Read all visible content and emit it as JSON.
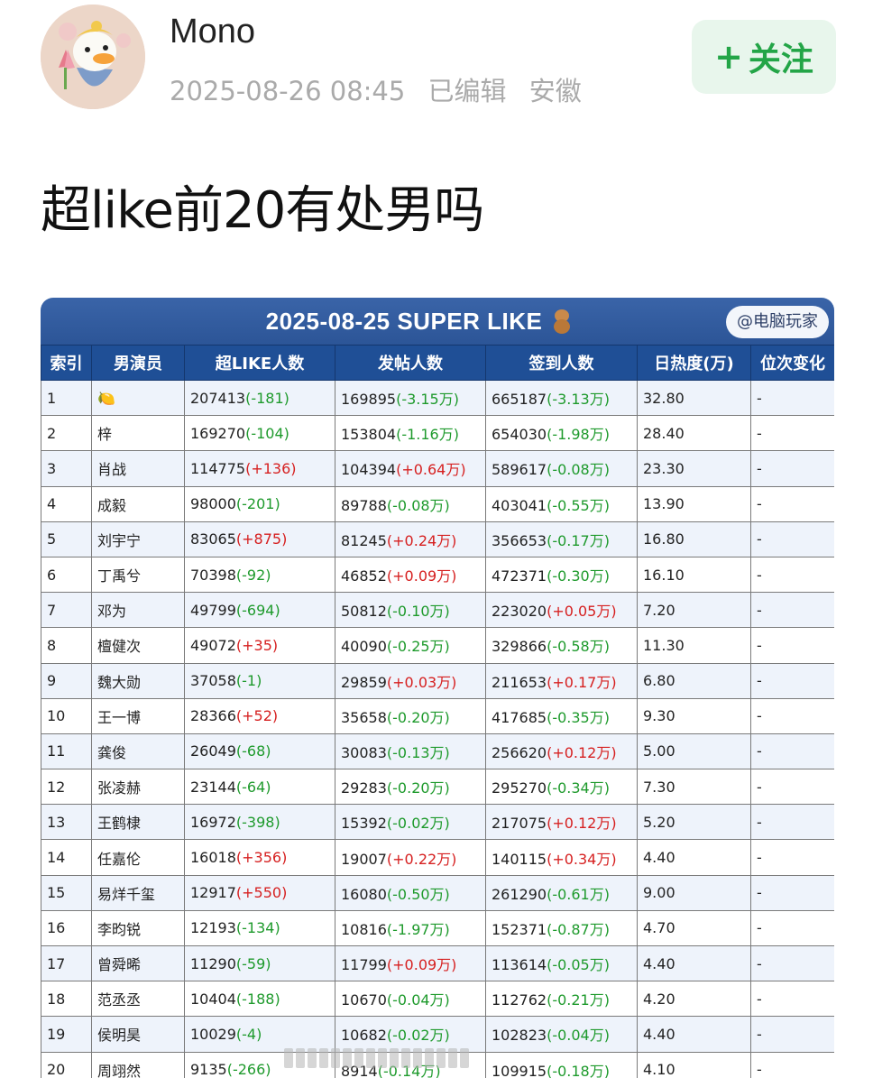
{
  "post": {
    "username": "Mono",
    "date": "2025-08-26 08:45",
    "edited": "已编辑",
    "location": "安徽",
    "follow_plus": "+",
    "follow_label": "关注",
    "title": "超like前20有处男吗"
  },
  "table": {
    "title": "2025-08-25 SUPER LIKE",
    "source_tag": "@电脑玩家",
    "headers": [
      "索引",
      "男演员",
      "超LIKE人数",
      "发帖人数",
      "签到人数",
      "日热度(万)",
      "位次变化"
    ],
    "rows": [
      {
        "idx": "1",
        "name": "🍋",
        "like": "207413",
        "like_d": "(-181)",
        "post": "169895",
        "post_d": "(-3.15万)",
        "sign": "665187",
        "sign_d": "(-3.13万)",
        "heat": "32.80",
        "rank": "-"
      },
      {
        "idx": "2",
        "name": "梓",
        "like": "169270",
        "like_d": "(-104)",
        "post": "153804",
        "post_d": "(-1.16万)",
        "sign": "654030",
        "sign_d": "(-1.98万)",
        "heat": "28.40",
        "rank": "-"
      },
      {
        "idx": "3",
        "name": "肖战",
        "like": "114775",
        "like_d": "(+136)",
        "post": "104394",
        "post_d": "(+0.64万)",
        "sign": "589617",
        "sign_d": "(-0.08万)",
        "heat": "23.30",
        "rank": "-"
      },
      {
        "idx": "4",
        "name": "成毅",
        "like": "98000",
        "like_d": "(-201)",
        "post": "89788",
        "post_d": "(-0.08万)",
        "sign": "403041",
        "sign_d": "(-0.55万)",
        "heat": "13.90",
        "rank": "-"
      },
      {
        "idx": "5",
        "name": "刘宇宁",
        "like": "83065",
        "like_d": "(+875)",
        "post": "81245",
        "post_d": "(+0.24万)",
        "sign": "356653",
        "sign_d": "(-0.17万)",
        "heat": "16.80",
        "rank": "-"
      },
      {
        "idx": "6",
        "name": "丁禹兮",
        "like": "70398",
        "like_d": "(-92)",
        "post": "46852",
        "post_d": "(+0.09万)",
        "sign": "472371",
        "sign_d": "(-0.30万)",
        "heat": "16.10",
        "rank": "-"
      },
      {
        "idx": "7",
        "name": "邓为",
        "like": "49799",
        "like_d": "(-694)",
        "post": "50812",
        "post_d": "(-0.10万)",
        "sign": "223020",
        "sign_d": "(+0.05万)",
        "heat": "7.20",
        "rank": "-"
      },
      {
        "idx": "8",
        "name": "檀健次",
        "like": "49072",
        "like_d": "(+35)",
        "post": "40090",
        "post_d": "(-0.25万)",
        "sign": "329866",
        "sign_d": "(-0.58万)",
        "heat": "11.30",
        "rank": "-"
      },
      {
        "idx": "9",
        "name": "魏大勋",
        "like": "37058",
        "like_d": "(-1)",
        "post": "29859",
        "post_d": "(+0.03万)",
        "sign": "211653",
        "sign_d": "(+0.17万)",
        "heat": "6.80",
        "rank": "-"
      },
      {
        "idx": "10",
        "name": "王一博",
        "like": "28366",
        "like_d": "(+52)",
        "post": "35658",
        "post_d": "(-0.20万)",
        "sign": "417685",
        "sign_d": "(-0.35万)",
        "heat": "9.30",
        "rank": "-"
      },
      {
        "idx": "11",
        "name": "龚俊",
        "like": "26049",
        "like_d": "(-68)",
        "post": "30083",
        "post_d": "(-0.13万)",
        "sign": "256620",
        "sign_d": "(+0.12万)",
        "heat": "5.00",
        "rank": "-"
      },
      {
        "idx": "12",
        "name": "张凌赫",
        "like": "23144",
        "like_d": "(-64)",
        "post": "29283",
        "post_d": "(-0.20万)",
        "sign": "295270",
        "sign_d": "(-0.34万)",
        "heat": "7.30",
        "rank": "-"
      },
      {
        "idx": "13",
        "name": "王鹤棣",
        "like": "16972",
        "like_d": "(-398)",
        "post": "15392",
        "post_d": "(-0.02万)",
        "sign": "217075",
        "sign_d": "(+0.12万)",
        "heat": "5.20",
        "rank": "-"
      },
      {
        "idx": "14",
        "name": "任嘉伦",
        "like": "16018",
        "like_d": "(+356)",
        "post": "19007",
        "post_d": "(+0.22万)",
        "sign": "140115",
        "sign_d": "(+0.34万)",
        "heat": "4.40",
        "rank": "-"
      },
      {
        "idx": "15",
        "name": "易烊千玺",
        "like": "12917",
        "like_d": "(+550)",
        "post": "16080",
        "post_d": "(-0.50万)",
        "sign": "261290",
        "sign_d": "(-0.61万)",
        "heat": "9.00",
        "rank": "-"
      },
      {
        "idx": "16",
        "name": "李昀锐",
        "like": "12193",
        "like_d": "(-134)",
        "post": "10816",
        "post_d": "(-1.97万)",
        "sign": "152371",
        "sign_d": "(-0.87万)",
        "heat": "4.70",
        "rank": "-"
      },
      {
        "idx": "17",
        "name": "曾舜晞",
        "like": "11290",
        "like_d": "(-59)",
        "post": "11799",
        "post_d": "(+0.09万)",
        "sign": "113614",
        "sign_d": "(-0.05万)",
        "heat": "4.40",
        "rank": "-"
      },
      {
        "idx": "18",
        "name": "范丞丞",
        "like": "10404",
        "like_d": "(-188)",
        "post": "10670",
        "post_d": "(-0.04万)",
        "sign": "112762",
        "sign_d": "(-0.21万)",
        "heat": "4.20",
        "rank": "-"
      },
      {
        "idx": "19",
        "name": "侯明昊",
        "like": "10029",
        "like_d": "(-4)",
        "post": "10682",
        "post_d": "(-0.02万)",
        "sign": "102823",
        "sign_d": "(-0.04万)",
        "heat": "4.40",
        "rank": "-"
      },
      {
        "idx": "20",
        "name": "周翊然",
        "like": "9135",
        "like_d": "(-266)",
        "post": "8914",
        "post_d": "(-0.14万)",
        "sign": "109915",
        "sign_d": "(-0.18万)",
        "heat": "4.10",
        "rank": "-"
      }
    ]
  },
  "colors": {
    "follow_bg": "#e8f6ec",
    "follow_text": "#23a547",
    "table_header": "#1f4f96",
    "negative": "#1e9a2c",
    "positive": "#d62020"
  }
}
